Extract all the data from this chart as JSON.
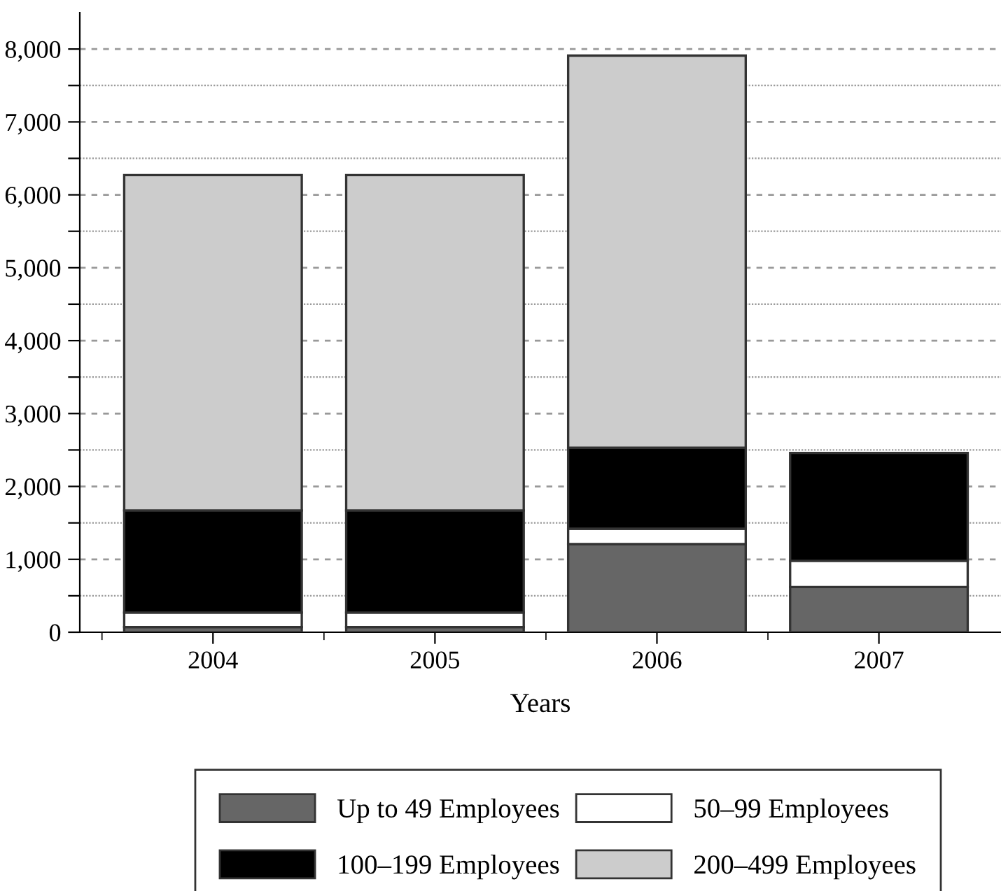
{
  "chart_data": {
    "type": "bar",
    "stacked": true,
    "xlabel": "Years",
    "categories": [
      "2004",
      "2005",
      "2006",
      "2007"
    ],
    "series": [
      {
        "name": "Up to 49 Employees",
        "color": "#666666",
        "values": [
          70,
          70,
          1210,
          620
        ]
      },
      {
        "name": "50–99 Employees",
        "color": "#ffffff",
        "values": [
          200,
          200,
          210,
          360
        ]
      },
      {
        "name": "100–199 Employees",
        "color": "#000000",
        "values": [
          1400,
          1400,
          1110,
          1480
        ]
      },
      {
        "name": "200–499 Employees",
        "color": "#cccccc",
        "values": [
          4600,
          4600,
          5380,
          null
        ]
      }
    ],
    "ylim": [
      0,
      8500
    ],
    "yticks": [
      0,
      {
        "value": 500,
        "label": null
      },
      {
        "value": 1000,
        "label": "1,000"
      },
      {
        "value": 1500,
        "label": null
      },
      {
        "value": 2000,
        "label": "2,000"
      },
      {
        "value": 2500,
        "label": null
      },
      {
        "value": 3000,
        "label": "3,000"
      },
      {
        "value": 3500,
        "label": null
      },
      {
        "value": 4000,
        "label": "4,000"
      },
      {
        "value": 4500,
        "label": null
      },
      {
        "value": 5000,
        "label": "5,000"
      },
      {
        "value": 5500,
        "label": null
      },
      {
        "value": 6000,
        "label": "6,000"
      },
      {
        "value": 6500,
        "label": null
      },
      {
        "value": 7000,
        "label": "7,000"
      },
      {
        "value": 7500,
        "label": null
      },
      {
        "value": 8000,
        "label": "8,000"
      }
    ],
    "grid": "y",
    "legend": "bottom"
  }
}
